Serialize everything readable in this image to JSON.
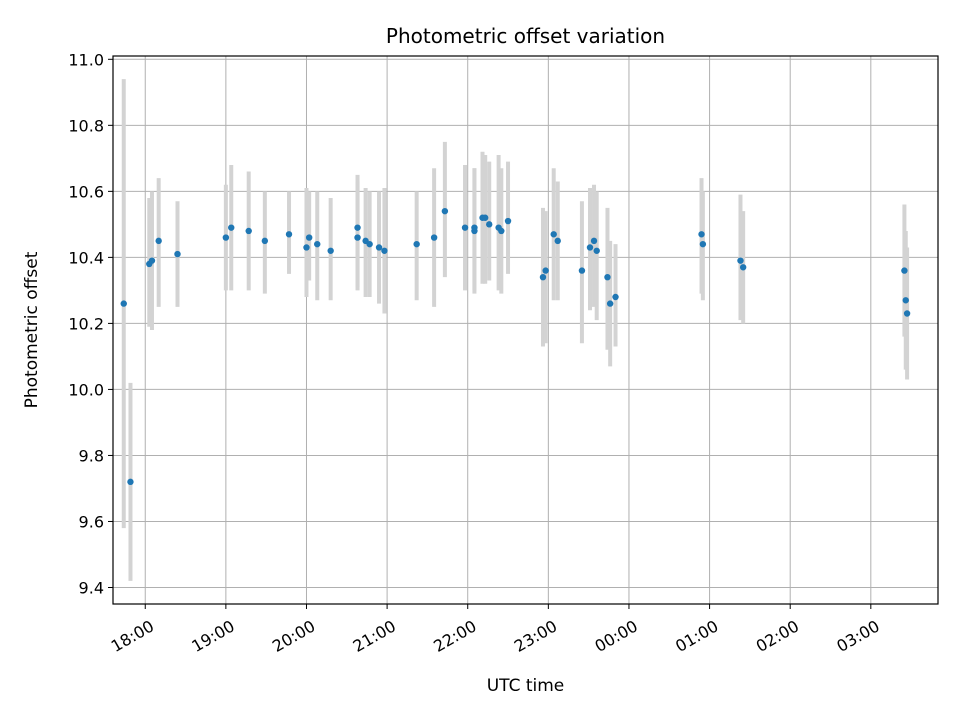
{
  "chart_data": {
    "type": "scatter",
    "title": "Photometric offset variation",
    "xlabel": "UTC time",
    "ylabel": "Photometric offset",
    "grid": true,
    "xlim": [
      "17:36",
      "27:50"
    ],
    "ylim": [
      9.35,
      11.01
    ],
    "y_ticks": [
      9.4,
      9.6,
      9.8,
      10.0,
      10.2,
      10.4,
      10.6,
      10.8,
      11.0
    ],
    "y_tick_labels": [
      "9.4",
      "9.6",
      "9.8",
      "10.0",
      "10.2",
      "10.4",
      "10.6",
      "10.8",
      "11.0"
    ],
    "x_ticks": [
      "18:00",
      "19:00",
      "20:00",
      "21:00",
      "22:00",
      "23:00",
      "24:00",
      "25:00",
      "26:00",
      "27:00"
    ],
    "x_tick_labels": [
      "18:00",
      "19:00",
      "20:00",
      "21:00",
      "22:00",
      "23:00",
      "00:00",
      "01:00",
      "02:00",
      "03:00"
    ],
    "marker_color": "#1f77b4",
    "errorbar_color": "#d3d3d3",
    "series": [
      {
        "x": [
          "17:44",
          "17:49",
          "18:03",
          "18:05",
          "18:10",
          "18:24",
          "19:00",
          "19:04",
          "19:17",
          "19:29",
          "19:47",
          "20:00",
          "20:02",
          "20:08",
          "20:18",
          "20:38",
          "20:38",
          "20:44",
          "20:47",
          "20:54",
          "20:58",
          "21:22",
          "21:35",
          "21:43",
          "21:58",
          "22:05",
          "22:05",
          "22:11",
          "22:13",
          "22:16",
          "22:23",
          "22:25",
          "22:30",
          "22:56",
          "22:58",
          "23:04",
          "23:07",
          "23:25",
          "23:31",
          "23:34",
          "23:36",
          "23:44",
          "23:46",
          "23:50",
          "24:54",
          "24:55",
          "25:23",
          "25:25",
          "27:25",
          "27:26",
          "27:27"
        ],
        "y": [
          10.26,
          9.72,
          10.38,
          10.39,
          10.45,
          10.41,
          10.46,
          10.49,
          10.48,
          10.45,
          10.47,
          10.43,
          10.46,
          10.44,
          10.42,
          10.49,
          10.46,
          10.45,
          10.44,
          10.43,
          10.42,
          10.44,
          10.46,
          10.54,
          10.49,
          10.49,
          10.48,
          10.52,
          10.52,
          10.5,
          10.49,
          10.48,
          10.51,
          10.34,
          10.36,
          10.47,
          10.45,
          10.36,
          10.43,
          10.45,
          10.42,
          10.34,
          10.26,
          10.28,
          10.47,
          10.44,
          10.39,
          10.37,
          10.36,
          10.27,
          10.23
        ],
        "yerr_low": [
          9.58,
          9.42,
          10.19,
          10.18,
          10.25,
          10.25,
          10.3,
          10.3,
          10.3,
          10.29,
          10.35,
          10.28,
          10.33,
          10.27,
          10.27,
          10.31,
          10.3,
          10.28,
          10.28,
          10.26,
          10.23,
          10.27,
          10.25,
          10.34,
          10.3,
          10.3,
          10.29,
          10.32,
          10.32,
          10.33,
          10.3,
          10.29,
          10.35,
          10.13,
          10.14,
          10.27,
          10.27,
          10.14,
          10.24,
          10.25,
          10.21,
          10.12,
          10.07,
          10.13,
          10.29,
          10.27,
          10.21,
          10.2,
          10.16,
          10.06,
          10.03
        ],
        "yerr_high": [
          10.94,
          10.02,
          10.58,
          10.6,
          10.64,
          10.57,
          10.62,
          10.68,
          10.66,
          10.6,
          10.6,
          10.61,
          10.6,
          10.6,
          10.58,
          10.65,
          10.63,
          10.61,
          10.6,
          10.6,
          10.61,
          10.6,
          10.67,
          10.75,
          10.68,
          10.67,
          10.67,
          10.72,
          10.71,
          10.69,
          10.71,
          10.67,
          10.69,
          10.55,
          10.54,
          10.67,
          10.63,
          10.57,
          10.61,
          10.62,
          10.6,
          10.55,
          10.45,
          10.44,
          10.64,
          10.6,
          10.59,
          10.54,
          10.56,
          10.48,
          10.43
        ]
      }
    ]
  }
}
